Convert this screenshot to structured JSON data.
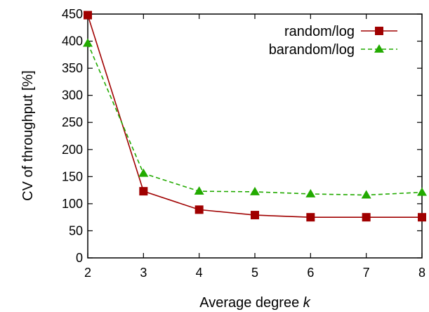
{
  "chart_data": {
    "type": "line",
    "title": "",
    "xlabel": "Average degree",
    "xlabel_var": "k",
    "ylabel": "CV of throughput [%]",
    "x": [
      2,
      3,
      4,
      5,
      6,
      7,
      8
    ],
    "xlim": [
      2,
      8
    ],
    "ylim": [
      0,
      450
    ],
    "xticks": [
      2,
      3,
      4,
      5,
      6,
      7,
      8
    ],
    "yticks": [
      0,
      50,
      100,
      150,
      200,
      250,
      300,
      350,
      400,
      450
    ],
    "grid": false,
    "legend_position": "top-right",
    "series": [
      {
        "name": "random/log",
        "values": [
          448,
          123,
          89,
          79,
          75,
          75,
          75
        ],
        "color": "#a00000",
        "line_style": "solid",
        "marker": "square"
      },
      {
        "name": "barandom/log",
        "values": [
          396,
          156,
          123,
          122,
          118,
          116,
          121
        ],
        "color": "#22aa00",
        "line_style": "dashed",
        "marker": "triangle"
      }
    ]
  }
}
